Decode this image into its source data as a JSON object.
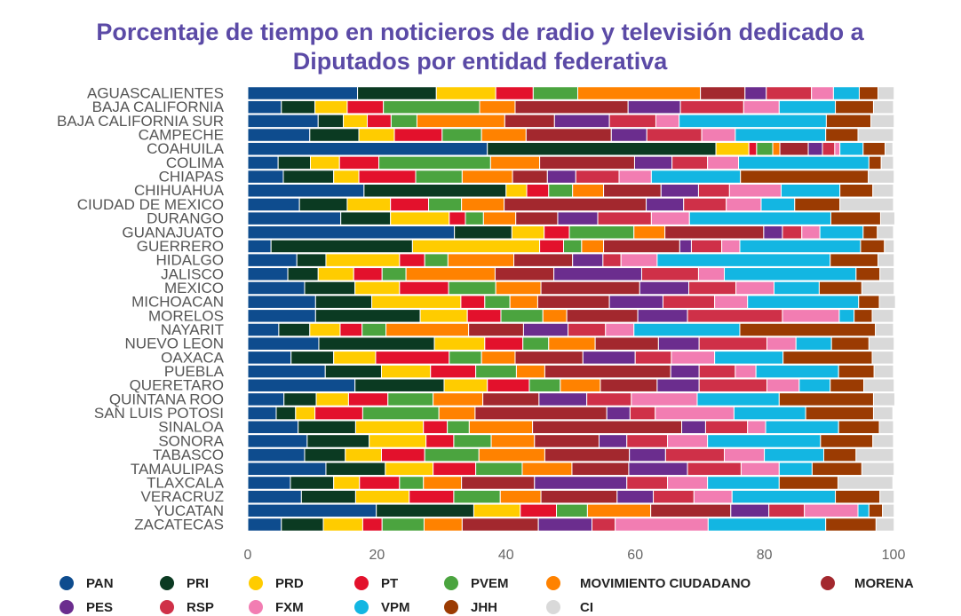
{
  "chart_data": {
    "type": "stacked_bar_horizontal",
    "title": "Porcentaje de tiempo en noticieros de radio y televisión dedicado a Diputados por entidad federativa",
    "categories": [
      "AGUASCALIENTES",
      "BAJA CALIFORNIA",
      "BAJA CALIFORNIA SUR",
      "CAMPECHE",
      "COAHUILA",
      "COLIMA",
      "CHIAPAS",
      "CHIHUAHUA",
      "CIUDAD DE MEXICO",
      "DURANGO",
      "GUANAJUATO",
      "GUERRERO",
      "HIDALGO",
      "JALISCO",
      "MEXICO",
      "MICHOACAN",
      "MORELOS",
      "NAYARIT",
      "NUEVO LEON",
      "OAXACA",
      "PUEBLA",
      "QUERETARO",
      "QUINTANA ROO",
      "SAN LUIS POTOSI",
      "SINALOA",
      "SONORA",
      "TABASCO",
      "TAMAULIPAS",
      "TLAXCALA",
      "VERACRUZ",
      "YUCATAN",
      "ZACATECAS"
    ],
    "series": [
      {
        "name": "PAN",
        "color": "#0e4c8e",
        "values": [
          17,
          5.2,
          10.9,
          9.6,
          37.1,
          4.7,
          5.5,
          18,
          8,
          14.4,
          32,
          3.6,
          7.6,
          6.2,
          8.8,
          10.5,
          10.5,
          4.8,
          11,
          6.7,
          12,
          16.6,
          5.6,
          4.4,
          7.8,
          9.2,
          8.8,
          12.1,
          6.6,
          8.3,
          19.9,
          5.2
        ]
      },
      {
        "name": "PRI",
        "color": "#0b3a22",
        "values": [
          12.2,
          5.2,
          3.9,
          7.6,
          35.4,
          5,
          7.8,
          22,
          7.4,
          7.7,
          8.9,
          21.9,
          4.5,
          4.7,
          7.8,
          8.7,
          16.2,
          4.8,
          17.9,
          6.6,
          8.7,
          13.8,
          5,
          3,
          8.9,
          9.6,
          6.3,
          9.2,
          6.7,
          8.4,
          15.1,
          6.5
        ]
      },
      {
        "name": "PRD",
        "color": "#ffcc00",
        "values": [
          9.2,
          5,
          3.7,
          5.5,
          5.1,
          4.5,
          3.9,
          3.2,
          6.7,
          9.1,
          5,
          19.7,
          11.4,
          5.5,
          6.9,
          13.8,
          7.3,
          4.7,
          7.8,
          6.5,
          7.6,
          6.7,
          5,
          3,
          10.5,
          8.8,
          5.6,
          7.4,
          4,
          8.3,
          7.2,
          6.1
        ]
      },
      {
        "name": "PT",
        "color": "#e3112c",
        "values": [
          5.8,
          5.6,
          3.7,
          7.4,
          1.2,
          6.1,
          8.8,
          3.4,
          5.9,
          2.5,
          3.9,
          3.7,
          3.9,
          4.4,
          7.6,
          3.7,
          5.2,
          3.4,
          5.9,
          11.4,
          7,
          6.5,
          6.1,
          7.4,
          3.7,
          4.3,
          6.7,
          6.6,
          6.2,
          6.9,
          5.6,
          3
        ]
      },
      {
        "name": "PVEM",
        "color": "#4ba43f",
        "values": [
          6.9,
          14.9,
          4,
          6.1,
          2.5,
          17.3,
          7.2,
          3.7,
          5.1,
          2.8,
          10,
          2.8,
          3.6,
          3.7,
          7.3,
          3.9,
          6.5,
          3.7,
          4,
          5,
          6.3,
          4.8,
          7,
          11.8,
          3.4,
          5.8,
          8.4,
          7.2,
          3.7,
          7.2,
          4.8,
          6.5
        ]
      },
      {
        "name": "MOVIMIENTO CIUDADANO",
        "color": "#ff8200",
        "values": [
          19,
          5.5,
          13.6,
          6.9,
          1.1,
          7.6,
          7.8,
          4.8,
          6.6,
          5,
          4.8,
          3.4,
          10.2,
          13.8,
          7,
          4.3,
          3.7,
          12.8,
          7.2,
          5.2,
          4.4,
          6.2,
          7.7,
          5.6,
          9.8,
          6.7,
          10.2,
          7.7,
          5.9,
          6.3,
          9.8,
          5.9
        ]
      },
      {
        "name": "MORENA",
        "color": "#a3282e",
        "values": [
          6.9,
          17.5,
          7.7,
          13.2,
          4.4,
          14.7,
          5.4,
          8.9,
          22,
          6.5,
          15.3,
          11.8,
          9.1,
          9.1,
          15.3,
          11.1,
          11,
          8.5,
          9.8,
          10.5,
          19.5,
          8.8,
          8.7,
          20.4,
          23.1,
          10,
          13.1,
          8.8,
          11.3,
          11.8,
          12.4,
          11.8
        ]
      },
      {
        "name": "PES",
        "color": "#6b2d8e",
        "values": [
          3.3,
          8.1,
          8.5,
          5.5,
          2.2,
          5.8,
          4.4,
          5.8,
          5.8,
          6.2,
          2.9,
          1.8,
          4.7,
          13.6,
          7.6,
          8.3,
          7.7,
          6.9,
          6.3,
          8.1,
          4.4,
          6.5,
          7.4,
          3.6,
          3.7,
          4.3,
          5.6,
          9.1,
          14.3,
          5.6,
          5.9,
          8.3
        ]
      },
      {
        "name": "RSP",
        "color": "#cf3048",
        "values": [
          7,
          9.8,
          7.2,
          8.5,
          1.9,
          5.5,
          6.7,
          4.8,
          6.6,
          8.3,
          3,
          4.7,
          2.8,
          8.8,
          7.3,
          8,
          14.7,
          5.8,
          10.5,
          5.6,
          5.6,
          10.5,
          6.9,
          3.9,
          6.5,
          6.3,
          9.1,
          8.3,
          6.3,
          6.3,
          5.5,
          3.6
        ]
      },
      {
        "name": "FXM",
        "color": "#f27db2",
        "values": [
          3.4,
          5.5,
          3.6,
          5.2,
          0.8,
          4.8,
          5,
          8,
          5.4,
          5.9,
          2.8,
          2.8,
          5.6,
          4,
          5.9,
          5.1,
          8.8,
          4.4,
          4.5,
          6.7,
          3.2,
          5,
          10.2,
          12.2,
          2.8,
          6.2,
          6.2,
          5.9,
          6.2,
          5.9,
          8.3,
          14.4
        ]
      },
      {
        "name": "VPM",
        "color": "#13b6e2",
        "values": [
          4,
          8.7,
          22.8,
          14,
          3.6,
          20.2,
          13.8,
          9.1,
          5.2,
          21.9,
          6.7,
          18.7,
          26.8,
          20.4,
          7,
          17.2,
          2.3,
          16.4,
          5.5,
          10.6,
          12.8,
          4.8,
          12.7,
          11.1,
          11.3,
          17.5,
          9.2,
          5.1,
          11.1,
          16,
          1.7,
          18.2
        ]
      },
      {
        "name": "JHH",
        "color": "#9b3b02",
        "values": [
          2.9,
          5.9,
          6.9,
          5,
          3.4,
          1.9,
          19.8,
          5.1,
          7,
          7.7,
          2.2,
          3.7,
          7.4,
          3.7,
          6.6,
          3.2,
          2.8,
          21,
          5.8,
          13.8,
          5.5,
          5.2,
          14.6,
          10.5,
          6.3,
          8.1,
          5,
          7.7,
          9.1,
          6.9,
          2.1,
          7.8
        ]
      },
      {
        "name": "CI",
        "color": "#d9d9d9",
        "values": [
          2.5,
          3.1,
          3.6,
          5.5,
          1.2,
          1.9,
          4,
          3.2,
          8.3,
          2.2,
          2.5,
          1.5,
          2.5,
          2.2,
          5,
          2.5,
          3.3,
          2.8,
          3.9,
          3.3,
          3,
          4.7,
          3.3,
          3,
          2.2,
          3.2,
          5.8,
          5,
          8.5,
          2.2,
          1.8,
          2.8
        ]
      }
    ],
    "xlim": [
      0,
      100
    ],
    "xticks": [
      0,
      20,
      40,
      60,
      80,
      100
    ],
    "grid": false,
    "legend": "bottom"
  }
}
